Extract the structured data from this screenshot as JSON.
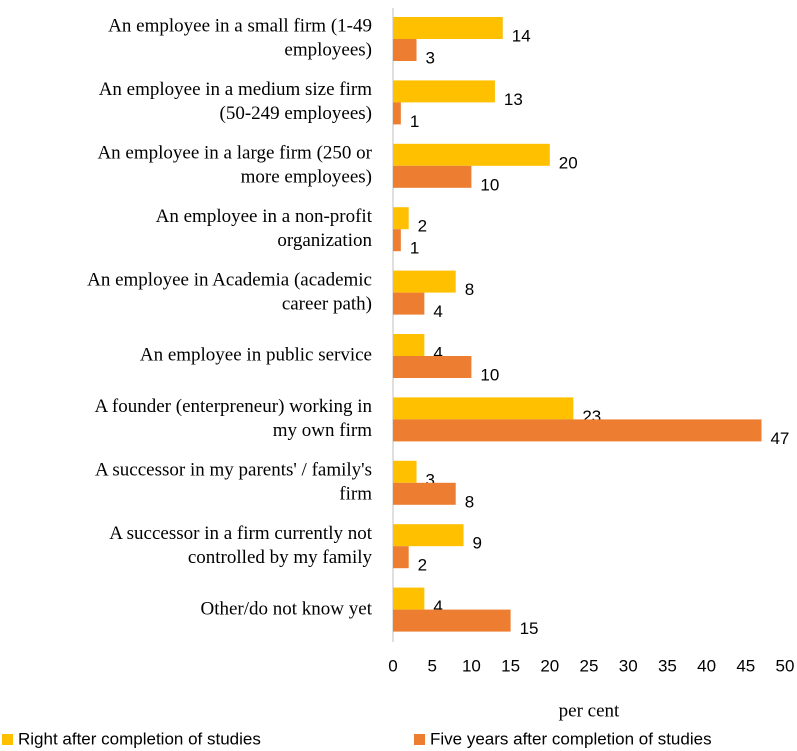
{
  "chart_data": {
    "type": "bar",
    "orientation": "horizontal",
    "categories": [
      [
        "An employee in a small firm (1-49",
        "employees)"
      ],
      [
        "An employee in a medium size firm",
        "(50-249 employees)"
      ],
      [
        "An employee in a large firm (250 or",
        "more employees)"
      ],
      [
        "An employee in a non-profit",
        "organization"
      ],
      [
        "An employee in Academia (academic",
        "career path)"
      ],
      [
        "An employee in public service"
      ],
      [
        "A founder (enterpreneur) working in",
        "my own firm"
      ],
      [
        "A successor in my parents' / family's",
        "firm"
      ],
      [
        "A successor in a firm currently not",
        "controlled by my family"
      ],
      [
        "Other/do not know yet"
      ]
    ],
    "series": [
      {
        "name": "Right after completion of studies",
        "color": "#FFC000",
        "values": [
          14,
          13,
          20,
          2,
          8,
          4,
          23,
          3,
          9,
          4
        ]
      },
      {
        "name": "Five years after completion of studies",
        "color": "#ED7D31",
        "values": [
          3,
          1,
          10,
          1,
          4,
          10,
          47,
          8,
          2,
          15
        ]
      }
    ],
    "xlabel": "per cent",
    "xlim": [
      0,
      50
    ],
    "xticks": [
      0,
      5,
      10,
      15,
      20,
      25,
      30,
      35,
      40,
      45,
      50
    ],
    "grid": false,
    "legend": "bottom"
  }
}
